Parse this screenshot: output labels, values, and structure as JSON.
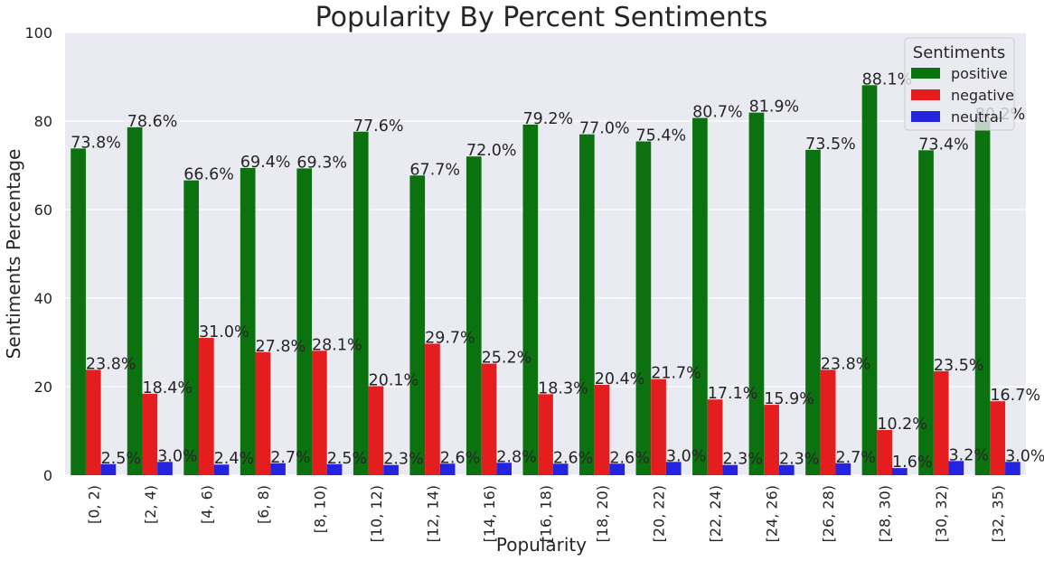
{
  "chart_data": {
    "type": "bar",
    "title": "Popularity By Percent Sentiments",
    "xlabel": "Popularity",
    "ylabel": "Sentiments Percentage",
    "ylim": [
      0,
      100
    ],
    "yticks": [
      "0",
      "20",
      "40",
      "60",
      "80",
      "100"
    ],
    "grid": true,
    "legend": {
      "title": "Sentiments",
      "placement": "top-right"
    },
    "categories": [
      "[0, 2)",
      "[2, 4)",
      "[4, 6)",
      "[6, 8)",
      "[8, 10)",
      "[10, 12)",
      "[12, 14)",
      "[14, 16)",
      "[16, 18)",
      "[18, 20)",
      "[20, 22)",
      "[22, 24)",
      "[24, 26)",
      "[26, 28)",
      "[28, 30)",
      "[30, 32)",
      "[32, 35)"
    ],
    "series": [
      {
        "name": "positive",
        "color": "#0c7210",
        "values": [
          73.8,
          78.6,
          66.6,
          69.4,
          69.3,
          77.6,
          67.7,
          72.0,
          79.2,
          77.0,
          75.4,
          80.7,
          81.9,
          73.5,
          88.1,
          73.4,
          80.2
        ],
        "labels": [
          "73.8%",
          "78.6%",
          "66.6%",
          "69.4%",
          "69.3%",
          "77.6%",
          "67.7%",
          "72.0%",
          "79.2%",
          "77.0%",
          "75.4%",
          "80.7%",
          "81.9%",
          "73.5%",
          "88.1%",
          "73.4%",
          "80.2%"
        ]
      },
      {
        "name": "negative",
        "color": "#e41e1e",
        "values": [
          23.8,
          18.4,
          31.0,
          27.8,
          28.1,
          20.1,
          29.7,
          25.2,
          18.3,
          20.4,
          21.7,
          17.1,
          15.9,
          23.8,
          10.2,
          23.5,
          16.7
        ],
        "labels": [
          "23.8%",
          "18.4%",
          "31.0%",
          "27.8%",
          "28.1%",
          "20.1%",
          "29.7%",
          "25.2%",
          "18.3%",
          "20.4%",
          "21.7%",
          "17.1%",
          "15.9%",
          "23.8%",
          "10.2%",
          "23.5%",
          "16.7%"
        ]
      },
      {
        "name": "neutral",
        "color": "#2424e0",
        "values": [
          2.5,
          3.0,
          2.4,
          2.7,
          2.5,
          2.3,
          2.6,
          2.8,
          2.6,
          2.6,
          3.0,
          2.3,
          2.3,
          2.7,
          1.6,
          3.2,
          3.0
        ],
        "labels": [
          "2.5%",
          "3.0%",
          "2.4%",
          "2.7%",
          "2.5%",
          "2.3%",
          "2.6%",
          "2.8%",
          "2.6%",
          "2.6%",
          "3.0%",
          "2.3%",
          "2.3%",
          "2.7%",
          "1.6%",
          "3.2%",
          "3.0%"
        ]
      }
    ]
  }
}
